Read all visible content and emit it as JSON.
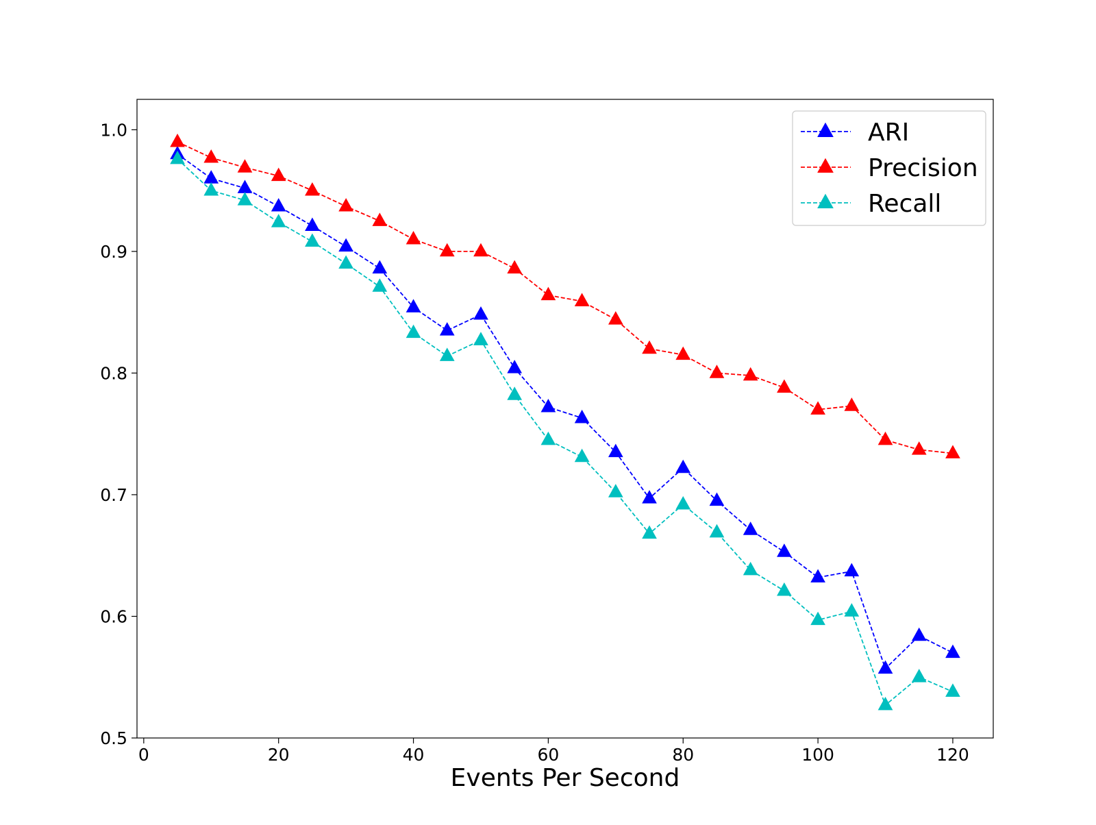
{
  "chart_data": {
    "type": "line",
    "title": "",
    "xlabel": "Events Per Second",
    "ylabel": "",
    "xlim": [
      -1,
      126
    ],
    "ylim": [
      0.5,
      1.025
    ],
    "xticks": [
      0,
      20,
      40,
      60,
      80,
      100,
      120
    ],
    "yticks": [
      0.5,
      0.6,
      0.7,
      0.8,
      0.9,
      1.0
    ],
    "xtick_labels": [
      "0",
      "20",
      "40",
      "60",
      "80",
      "100",
      "120"
    ],
    "ytick_labels": [
      "0.5",
      "0.6",
      "0.7",
      "0.8",
      "0.9",
      "1.0"
    ],
    "grid": false,
    "legend_position": "top-right",
    "x": [
      5,
      10,
      15,
      20,
      25,
      30,
      35,
      40,
      45,
      50,
      55,
      60,
      65,
      70,
      75,
      80,
      85,
      90,
      95,
      100,
      105,
      110,
      115,
      120
    ],
    "series": [
      {
        "name": "ARI",
        "color": "#0000ff",
        "marker": "triangle",
        "line_style": "dashed",
        "values": [
          0.98,
          0.96,
          0.952,
          0.937,
          0.921,
          0.904,
          0.886,
          0.854,
          0.835,
          0.848,
          0.804,
          0.772,
          0.763,
          0.735,
          0.697,
          0.722,
          0.695,
          0.671,
          0.653,
          0.632,
          0.637,
          0.557,
          0.584,
          0.57
        ]
      },
      {
        "name": "Precision",
        "color": "#ff0000",
        "marker": "triangle",
        "line_style": "dashed",
        "values": [
          0.99,
          0.977,
          0.969,
          0.962,
          0.95,
          0.937,
          0.925,
          0.91,
          0.9,
          0.9,
          0.886,
          0.864,
          0.859,
          0.844,
          0.82,
          0.815,
          0.8,
          0.798,
          0.788,
          0.77,
          0.773,
          0.745,
          0.737,
          0.734
        ]
      },
      {
        "name": "Recall",
        "color": "#00bfbf",
        "marker": "triangle",
        "line_style": "dashed",
        "values": [
          0.976,
          0.95,
          0.942,
          0.924,
          0.908,
          0.89,
          0.871,
          0.833,
          0.814,
          0.827,
          0.782,
          0.745,
          0.731,
          0.702,
          0.668,
          0.692,
          0.669,
          0.638,
          0.621,
          0.597,
          0.604,
          0.527,
          0.55,
          0.538
        ]
      }
    ]
  }
}
